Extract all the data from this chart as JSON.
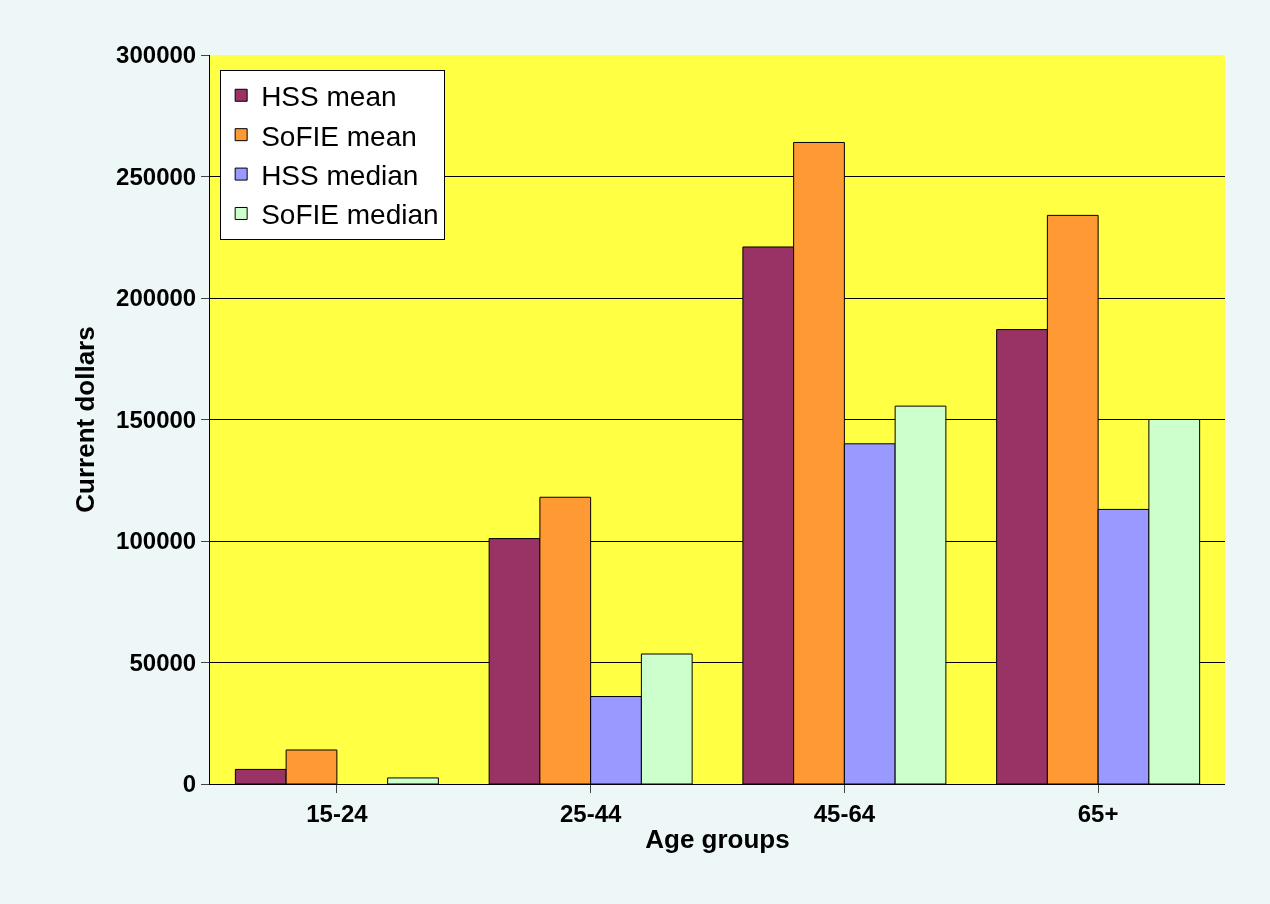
{
  "chart_data": {
    "type": "bar",
    "xlabel": "Age groups",
    "ylabel": "Current dollars",
    "categories": [
      "15-24",
      "25-44",
      "45-64",
      "65+"
    ],
    "series": [
      {
        "name": "HSS mean",
        "color": "#993366",
        "values": [
          6000,
          101000,
          221000,
          187000
        ]
      },
      {
        "name": "SoFIE mean",
        "color": "#ff9933",
        "values": [
          14000,
          118000,
          264000,
          234000
        ]
      },
      {
        "name": "HSS median",
        "color": "#9999ff",
        "values": [
          null,
          36000,
          140000,
          113000
        ]
      },
      {
        "name": "SoFIE median",
        "color": "#ccffcc",
        "values": [
          2500,
          53500,
          155500,
          150000
        ]
      }
    ],
    "ylim": [
      0,
      300000
    ],
    "yticks": [
      0,
      50000,
      100000,
      150000,
      200000,
      250000,
      300000
    ],
    "grid": "y",
    "legend": "top left"
  }
}
